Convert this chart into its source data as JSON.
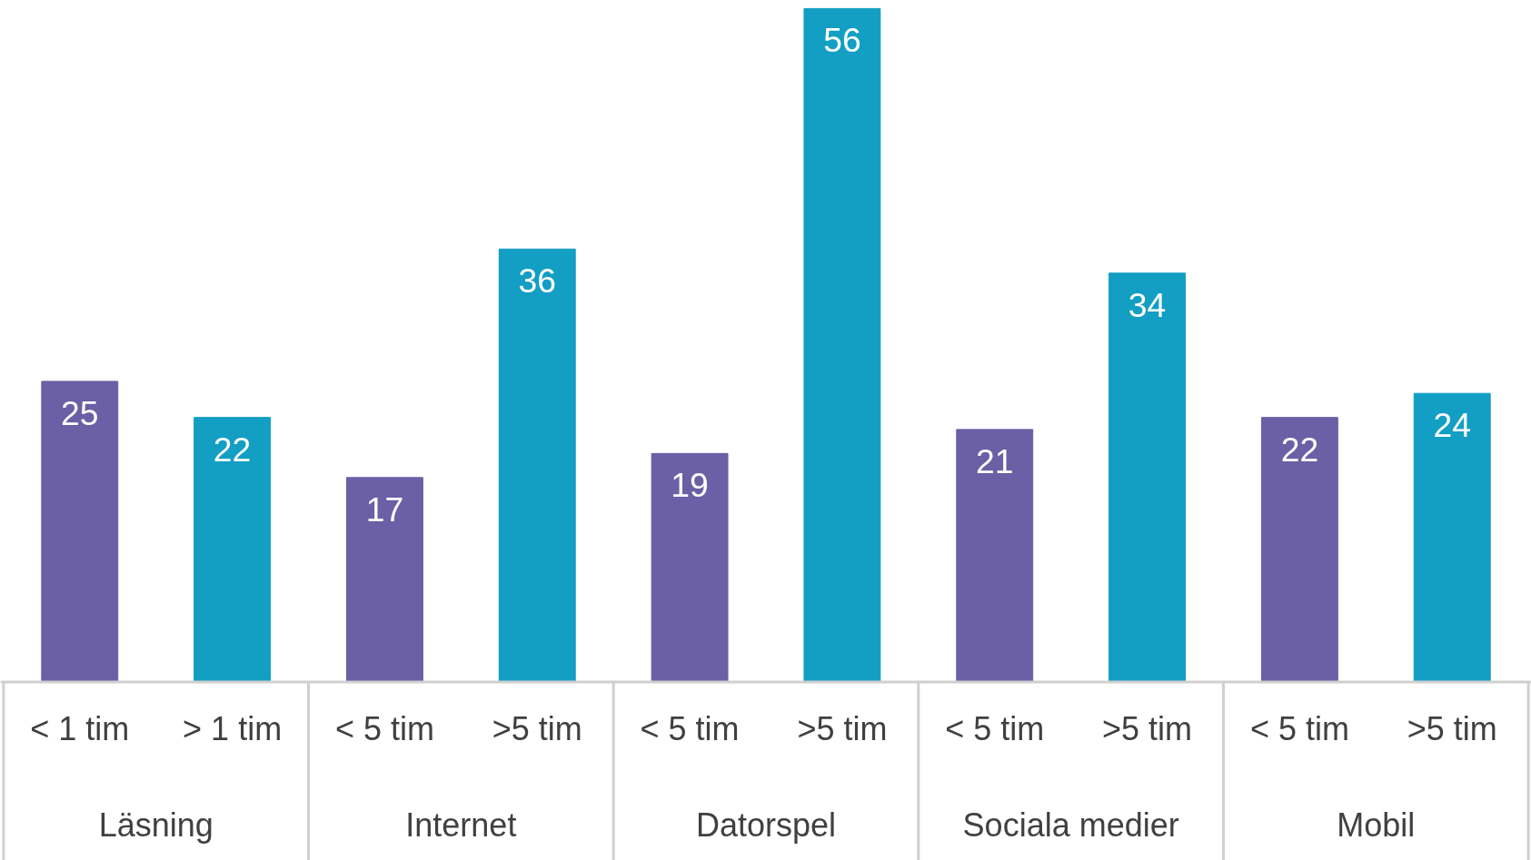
{
  "chart_data": {
    "type": "bar",
    "categories": [
      "< 1 tim",
      "> 1 tim",
      "< 5 tim",
      ">5 tim",
      "< 5 tim",
      ">5 tim",
      "< 5 tim",
      ">5 tim",
      "< 5 tim",
      ">5 tim"
    ],
    "values": [
      25,
      22,
      17,
      36,
      19,
      56,
      21,
      34,
      22,
      24
    ],
    "colors": [
      "#6b5fa5",
      "#139ec3",
      "#6b5fa5",
      "#139ec3",
      "#6b5fa5",
      "#139ec3",
      "#6b5fa5",
      "#139ec3",
      "#6b5fa5",
      "#139ec3"
    ],
    "data_labels": true,
    "annotations": [
      "Läsning",
      "Internet",
      "Datorspel",
      "Sociala medier",
      "Mobil"
    ],
    "grid": false
  }
}
